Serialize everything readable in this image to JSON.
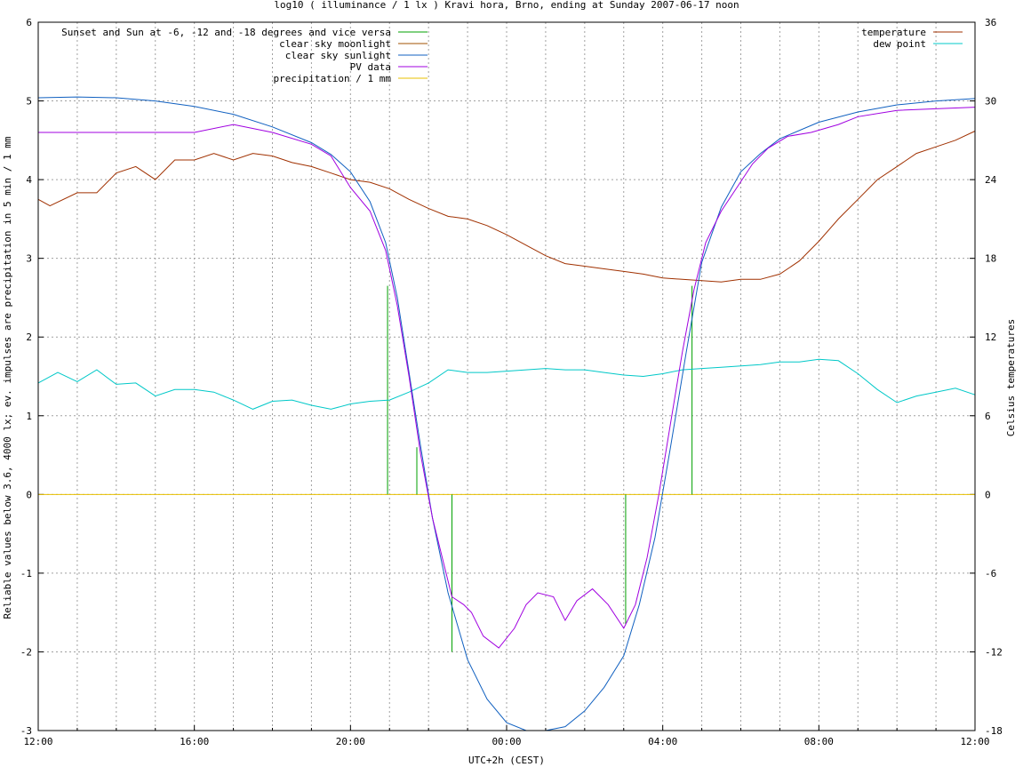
{
  "chart_data": {
    "type": "line",
    "title": "log10 ( illuminance / 1 lx ) Kravi hora, Brno, ending at Sunday 2007-06-17 noon",
    "xlabel": "UTC+2h (CEST)",
    "ylabel": "Reliable values below 3.6, 4000 lx; ev. impulses are precipitation in 5 min / 1 mm",
    "y2label": "Celsius temperatures",
    "xlim": [
      0,
      24
    ],
    "ylim": [
      -3,
      6
    ],
    "y2lim": [
      -18,
      36
    ],
    "x_tick_labels": [
      "12:00",
      "16:00",
      "20:00",
      "00:00",
      "04:00",
      "08:00",
      "12:00"
    ],
    "x_tick_values": [
      0,
      4,
      8,
      12,
      16,
      20,
      24
    ],
    "y_ticks": [
      -3,
      -2,
      -1,
      0,
      1,
      2,
      3,
      4,
      5,
      6
    ],
    "y2_ticks": [
      -18,
      -12,
      -6,
      0,
      6,
      12,
      18,
      24,
      30,
      36
    ],
    "grid": true,
    "legend_left": [
      {
        "name": "Sunset and Sun at -6, -12 and -18 degrees and vice versa",
        "color": "#00a000"
      },
      {
        "name": "clear sky moonlight",
        "color": "#a05000"
      },
      {
        "name": "clear sky sunlight",
        "color": "#1060c0"
      },
      {
        "name": "PV data",
        "color": "#a000e0"
      },
      {
        "name": "precipitation / 1 mm",
        "color": "#e8c000"
      }
    ],
    "legend_right": [
      {
        "name": "temperature",
        "color": "#a03000"
      },
      {
        "name": "dew point",
        "color": "#00c8c8"
      }
    ],
    "twilight_impulses": [
      {
        "x": 8.95,
        "top": 2.65
      },
      {
        "x": 9.7,
        "top": 0.6
      },
      {
        "x": 10.6,
        "top": 0.0,
        "bottom": -2.0
      },
      {
        "x": 15.05,
        "top": 0.0,
        "bottom": -1.65
      },
      {
        "x": 15.95,
        "top": 0.0
      },
      {
        "x": 16.75,
        "top": 2.65
      }
    ],
    "clear_sky_sunlight": [
      [
        0,
        5.04
      ],
      [
        1,
        5.05
      ],
      [
        2,
        5.04
      ],
      [
        3,
        5.0
      ],
      [
        4,
        4.93
      ],
      [
        5,
        4.83
      ],
      [
        6,
        4.67
      ],
      [
        7,
        4.47
      ],
      [
        7.5,
        4.32
      ],
      [
        8,
        4.1
      ],
      [
        8.5,
        3.72
      ],
      [
        8.9,
        3.2
      ],
      [
        9.2,
        2.5
      ],
      [
        9.5,
        1.55
      ],
      [
        9.8,
        0.6
      ],
      [
        10.1,
        -0.3
      ],
      [
        10.5,
        -1.25
      ],
      [
        11,
        -2.1
      ],
      [
        11.5,
        -2.6
      ],
      [
        12,
        -2.9
      ],
      [
        12.5,
        -3.0
      ],
      [
        13,
        -3.0
      ],
      [
        13.5,
        -2.95
      ],
      [
        14,
        -2.75
      ],
      [
        14.5,
        -2.45
      ],
      [
        15,
        -2.05
      ],
      [
        15.4,
        -1.4
      ],
      [
        15.8,
        -0.55
      ],
      [
        16.2,
        0.6
      ],
      [
        16.6,
        1.8
      ],
      [
        17,
        2.95
      ],
      [
        17.5,
        3.65
      ],
      [
        18,
        4.1
      ],
      [
        18.5,
        4.33
      ],
      [
        19,
        4.52
      ],
      [
        20,
        4.73
      ],
      [
        21,
        4.86
      ],
      [
        22,
        4.95
      ],
      [
        23,
        5.0
      ],
      [
        24,
        5.03
      ]
    ],
    "pv_data": [
      [
        0,
        4.6
      ],
      [
        4,
        4.6
      ],
      [
        5,
        4.7
      ],
      [
        6,
        4.6
      ],
      [
        7,
        4.45
      ],
      [
        7.5,
        4.3
      ],
      [
        8,
        3.9
      ],
      [
        8.5,
        3.6
      ],
      [
        8.9,
        3.1
      ],
      [
        9.2,
        2.4
      ],
      [
        9.5,
        1.5
      ],
      [
        9.8,
        0.5
      ],
      [
        10.1,
        -0.3
      ],
      [
        10.4,
        -0.9
      ],
      [
        10.6,
        -1.3
      ],
      [
        10.9,
        -1.4
      ],
      [
        11.1,
        -1.5
      ],
      [
        11.4,
        -1.8
      ],
      [
        11.8,
        -1.95
      ],
      [
        12.2,
        -1.7
      ],
      [
        12.5,
        -1.4
      ],
      [
        12.8,
        -1.25
      ],
      [
        13.2,
        -1.3
      ],
      [
        13.5,
        -1.6
      ],
      [
        13.8,
        -1.35
      ],
      [
        14.2,
        -1.2
      ],
      [
        14.6,
        -1.4
      ],
      [
        15,
        -1.7
      ],
      [
        15.3,
        -1.4
      ],
      [
        15.6,
        -0.8
      ],
      [
        15.9,
        0.0
      ],
      [
        16.2,
        0.9
      ],
      [
        16.5,
        1.8
      ],
      [
        16.8,
        2.6
      ],
      [
        17.1,
        3.2
      ],
      [
        17.5,
        3.6
      ],
      [
        17.9,
        3.9
      ],
      [
        18.3,
        4.2
      ],
      [
        18.7,
        4.4
      ],
      [
        19.2,
        4.55
      ],
      [
        19.8,
        4.6
      ],
      [
        20.5,
        4.7
      ],
      [
        21,
        4.8
      ],
      [
        22,
        4.88
      ],
      [
        23,
        4.9
      ],
      [
        24,
        4.92
      ]
    ],
    "temperature": [
      [
        0,
        22.5
      ],
      [
        0.3,
        22.0
      ],
      [
        1,
        23.0
      ],
      [
        1.5,
        23.0
      ],
      [
        2,
        24.5
      ],
      [
        2.5,
        25.0
      ],
      [
        3,
        24.0
      ],
      [
        3.5,
        25.5
      ],
      [
        4,
        25.5
      ],
      [
        4.5,
        26.0
      ],
      [
        5,
        25.5
      ],
      [
        5.5,
        26.0
      ],
      [
        6,
        25.8
      ],
      [
        6.5,
        25.3
      ],
      [
        7,
        25.0
      ],
      [
        7.5,
        24.5
      ],
      [
        8,
        24.0
      ],
      [
        8.5,
        23.8
      ],
      [
        9,
        23.3
      ],
      [
        9.5,
        22.5
      ],
      [
        10,
        21.8
      ],
      [
        10.5,
        21.2
      ],
      [
        11,
        21.0
      ],
      [
        11.5,
        20.5
      ],
      [
        12,
        19.8
      ],
      [
        12.5,
        19.0
      ],
      [
        13,
        18.2
      ],
      [
        13.5,
        17.6
      ],
      [
        14,
        17.4
      ],
      [
        14.5,
        17.2
      ],
      [
        15,
        17.0
      ],
      [
        15.5,
        16.8
      ],
      [
        16,
        16.5
      ],
      [
        16.5,
        16.4
      ],
      [
        17,
        16.3
      ],
      [
        17.5,
        16.2
      ],
      [
        18,
        16.4
      ],
      [
        18.5,
        16.4
      ],
      [
        19,
        16.8
      ],
      [
        19.5,
        17.8
      ],
      [
        20,
        19.3
      ],
      [
        20.5,
        21.0
      ],
      [
        21,
        22.5
      ],
      [
        21.5,
        24.0
      ],
      [
        22,
        25.0
      ],
      [
        22.5,
        26.0
      ],
      [
        23,
        26.5
      ],
      [
        23.5,
        27.0
      ],
      [
        24,
        27.7
      ]
    ],
    "dew_point": [
      [
        0,
        8.5
      ],
      [
        0.5,
        9.3
      ],
      [
        1,
        8.6
      ],
      [
        1.5,
        9.5
      ],
      [
        2,
        8.4
      ],
      [
        2.5,
        8.5
      ],
      [
        3,
        7.5
      ],
      [
        3.5,
        8.0
      ],
      [
        4,
        8.0
      ],
      [
        4.5,
        7.8
      ],
      [
        5,
        7.2
      ],
      [
        5.5,
        6.5
      ],
      [
        6,
        7.1
      ],
      [
        6.5,
        7.2
      ],
      [
        7,
        6.8
      ],
      [
        7.5,
        6.5
      ],
      [
        8,
        6.9
      ],
      [
        8.5,
        7.1
      ],
      [
        9,
        7.2
      ],
      [
        9.5,
        7.8
      ],
      [
        10,
        8.5
      ],
      [
        10.5,
        9.5
      ],
      [
        11,
        9.3
      ],
      [
        11.5,
        9.3
      ],
      [
        12,
        9.4
      ],
      [
        12.5,
        9.5
      ],
      [
        13,
        9.6
      ],
      [
        13.5,
        9.5
      ],
      [
        14,
        9.5
      ],
      [
        14.5,
        9.3
      ],
      [
        15,
        9.1
      ],
      [
        15.5,
        9.0
      ],
      [
        16,
        9.2
      ],
      [
        16.5,
        9.5
      ],
      [
        17,
        9.6
      ],
      [
        17.5,
        9.7
      ],
      [
        18,
        9.8
      ],
      [
        18.5,
        9.9
      ],
      [
        19,
        10.1
      ],
      [
        19.5,
        10.1
      ],
      [
        20,
        10.3
      ],
      [
        20.5,
        10.2
      ],
      [
        21,
        9.2
      ],
      [
        21.5,
        8.0
      ],
      [
        22,
        7.0
      ],
      [
        22.5,
        7.5
      ],
      [
        23,
        7.8
      ],
      [
        23.5,
        8.1
      ],
      [
        24,
        7.6
      ]
    ],
    "precipitation": [
      [
        0,
        0
      ],
      [
        24,
        0
      ]
    ]
  }
}
